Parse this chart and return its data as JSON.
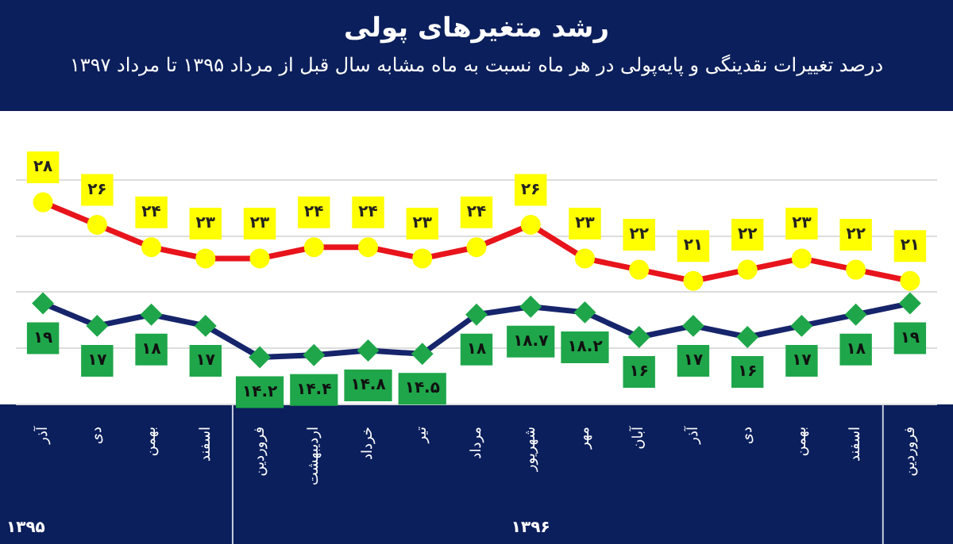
{
  "chart_data": {
    "type": "line",
    "title": "رشد متغیرهای پولی",
    "subtitle": "درصد تغییرات نقدینگی و پایه‌پولی در هر ماه نسبت به ماه مشابه سال قبل از مرداد ۱۳۹۵ تا مرداد ۱۳۹۷",
    "categories": [
      "آذر",
      "دی",
      "بهمن",
      "اسفند",
      "فروردین",
      "اردیبهشت",
      "خرداد",
      "تیر",
      "مرداد",
      "شهریور",
      "مهر",
      "آبان",
      "آذر",
      "دی",
      "بهمن",
      "اسفند",
      "فروردین"
    ],
    "series": [
      {
        "color": "#e8141c",
        "marker": "circle",
        "values": [
          28,
          26,
          24,
          23,
          23,
          24,
          24,
          23,
          24,
          26,
          23,
          22,
          21,
          22,
          23,
          22,
          21
        ],
        "value_labels": [
          "۲۸",
          "۲۶",
          "۲۴",
          "۲۳",
          "۲۳",
          "۲۴",
          "۲۴",
          "۲۳",
          "۲۴",
          "۲۶",
          "۲۳",
          "۲۲",
          "۲۱",
          "۲۲",
          "۲۳",
          "۲۲",
          "۲۱"
        ]
      },
      {
        "color": "#16256b",
        "marker": "diamond",
        "values": [
          19,
          17,
          18,
          17,
          14.2,
          14.4,
          14.8,
          14.5,
          18,
          18.7,
          18.2,
          16,
          17,
          16,
          17,
          18,
          19
        ],
        "value_labels": [
          "۱۹",
          "۱۷",
          "۱۸",
          "۱۷",
          "۱۴.۲",
          "۱۴.۴",
          "۱۴.۸",
          "۱۴.۵",
          "۱۸",
          "۱۸.۷",
          "۱۸.۲",
          "۱۶",
          "۱۷",
          "۱۶",
          "۱۷",
          "۱۸",
          "۱۹"
        ]
      }
    ],
    "yticks": [
      {
        "value": 10,
        "label": null
      },
      {
        "value": 15,
        "label": null
      },
      {
        "value": 20,
        "label": null
      },
      {
        "value": 25,
        "label": null
      },
      {
        "value": 30,
        "label": null
      }
    ],
    "grid": "y",
    "tick_labels": "x",
    "legend": false,
    "line_style": "solid",
    "annotations": [
      "۱۳۹۵",
      "۱۳۹۶"
    ]
  }
}
